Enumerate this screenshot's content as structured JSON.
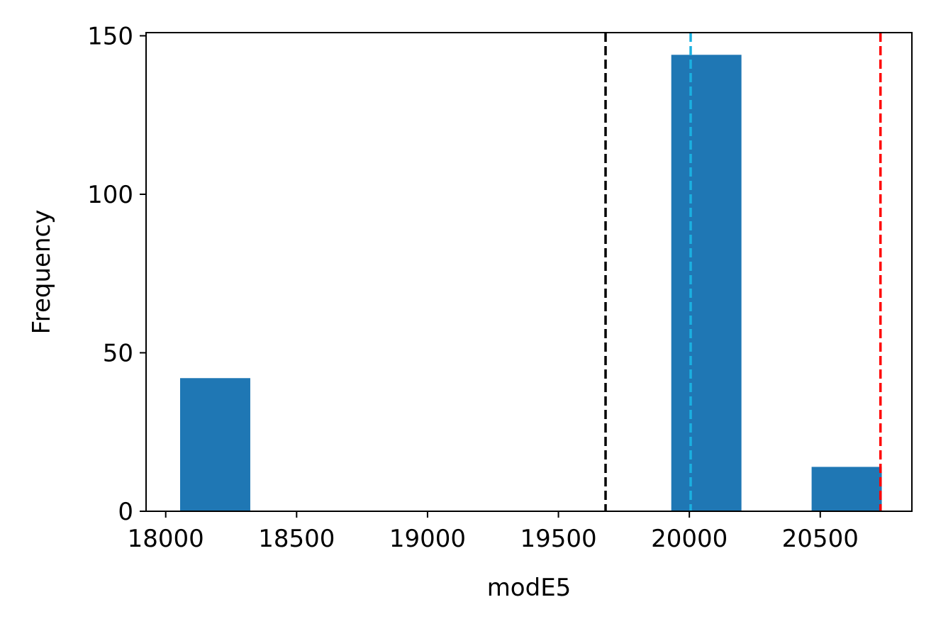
{
  "chart_data": {
    "type": "bar",
    "xlabel": "modE5",
    "ylabel": "Frequency",
    "xlim": [
      17925,
      20850
    ],
    "ylim": [
      0,
      151
    ],
    "x_ticks": [
      18000,
      18500,
      19000,
      19500,
      20000,
      20500
    ],
    "y_ticks": [
      0,
      50,
      100,
      150
    ],
    "bars": [
      {
        "x0": 18055,
        "x1": 18323,
        "value": 42
      },
      {
        "x0": 18323,
        "x1": 18591,
        "value": 0
      },
      {
        "x0": 18591,
        "x1": 18859,
        "value": 0
      },
      {
        "x0": 18859,
        "x1": 19127,
        "value": 0
      },
      {
        "x0": 19127,
        "x1": 19395,
        "value": 0
      },
      {
        "x0": 19395,
        "x1": 19663,
        "value": 0
      },
      {
        "x0": 19663,
        "x1": 19931,
        "value": 0
      },
      {
        "x0": 19931,
        "x1": 20199,
        "value": 144
      },
      {
        "x0": 20199,
        "x1": 20467,
        "value": 0
      },
      {
        "x0": 20467,
        "x1": 20735,
        "value": 14
      }
    ],
    "reference_lines": [
      {
        "x": 19680,
        "color": "#000000",
        "style": "dashed"
      },
      {
        "x": 20005,
        "color": "#1ab0e0",
        "style": "dashed"
      },
      {
        "x": 20730,
        "color": "#ff0000",
        "style": "dashed"
      }
    ],
    "bar_color": "#1f77b4",
    "grid": false,
    "legend": "none"
  }
}
